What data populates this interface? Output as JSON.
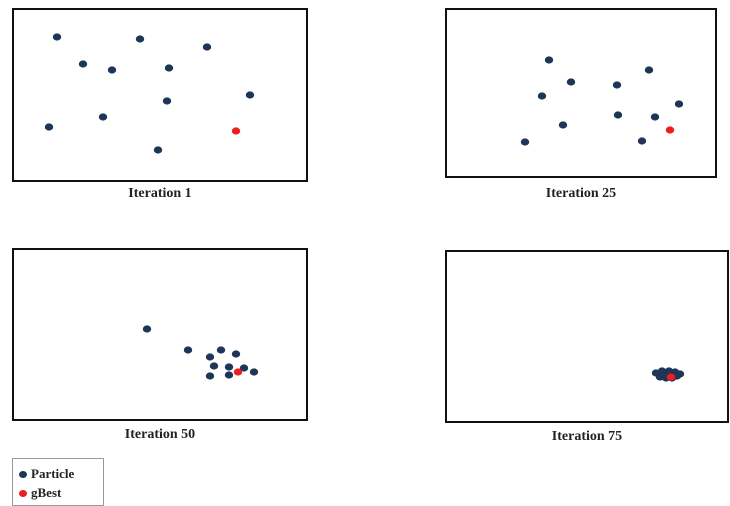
{
  "colors": {
    "particle": "#1d3557",
    "gbest": "#ee1c1c"
  },
  "panels": [
    {
      "caption": "Iteration 1",
      "particles": [
        [
          57,
          37
        ],
        [
          140,
          39
        ],
        [
          207,
          47
        ],
        [
          83,
          64
        ],
        [
          112,
          70
        ],
        [
          169,
          68
        ],
        [
          250,
          95
        ],
        [
          167,
          101
        ],
        [
          103,
          117
        ],
        [
          49,
          127
        ],
        [
          158,
          150
        ]
      ],
      "gbest": [
        236,
        131
      ]
    },
    {
      "caption": "Iteration 25",
      "particles": [
        [
          549,
          60
        ],
        [
          649,
          70
        ],
        [
          571,
          82
        ],
        [
          617,
          85
        ],
        [
          542,
          96
        ],
        [
          679,
          104
        ],
        [
          618,
          115
        ],
        [
          655,
          117
        ],
        [
          563,
          125
        ],
        [
          642,
          141
        ],
        [
          525,
          142
        ]
      ],
      "gbest": [
        670,
        130
      ]
    },
    {
      "caption": "Iteration 50",
      "particles": [
        [
          147,
          329
        ],
        [
          188,
          350
        ],
        [
          221,
          350
        ],
        [
          210,
          357
        ],
        [
          236,
          354
        ],
        [
          214,
          366
        ],
        [
          229,
          367
        ],
        [
          244,
          368
        ],
        [
          254,
          372
        ],
        [
          210,
          376
        ],
        [
          229,
          375
        ]
      ],
      "gbest": [
        238,
        372
      ]
    },
    {
      "caption": "Iteration 75",
      "particles": [
        [
          656,
          373
        ],
        [
          662,
          371
        ],
        [
          669,
          371
        ],
        [
          675,
          372
        ],
        [
          680,
          374
        ],
        [
          660,
          377
        ],
        [
          666,
          378
        ],
        [
          672,
          378
        ],
        [
          663,
          375
        ],
        [
          670,
          375
        ],
        [
          677,
          376
        ]
      ],
      "gbest": [
        671,
        377
      ]
    }
  ],
  "legend": {
    "particle_label": "Particle",
    "gbest_label": "gBest"
  }
}
